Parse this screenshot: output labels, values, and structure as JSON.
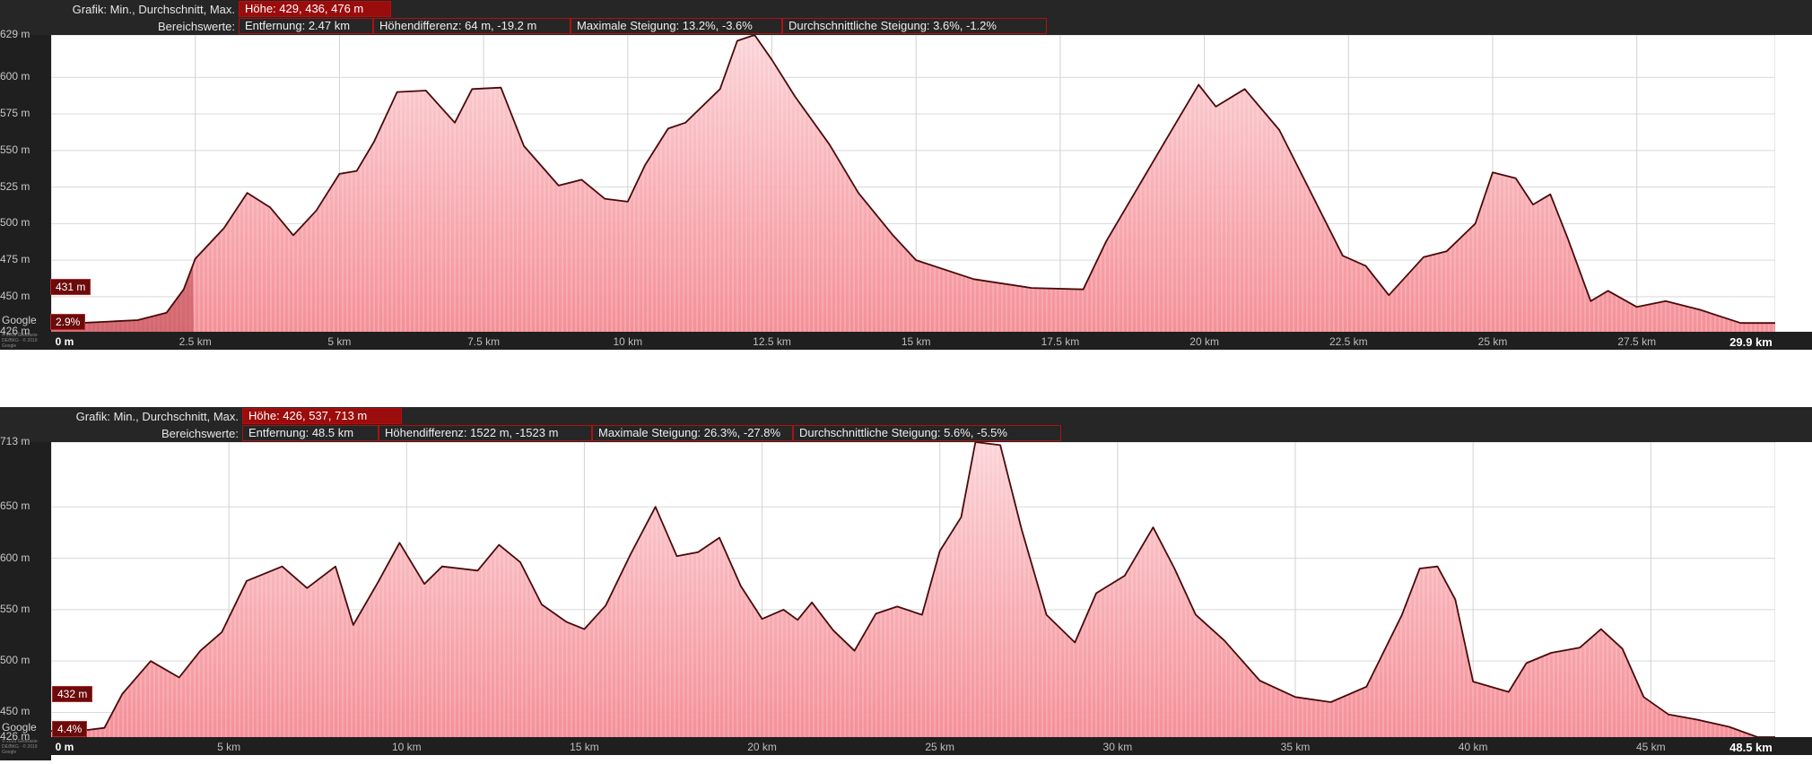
{
  "colors": {
    "fill": "#f7a0a6",
    "line": "#4a0a0a",
    "accent": "#9b0c0c",
    "frame": "#262626"
  },
  "charts": [
    {
      "header": {
        "grafik_label": "Grafik: Min., Durchschnitt, Max.",
        "hoehe": "Höhe: 429, 436, 476 m",
        "bereich_label": "Bereichswerte:",
        "entfernung": "Entfernung: 2.47 km",
        "hoehendifferenz": "Höhendifferenz: 64 m, -19.2 m",
        "max_steigung": "Maximale Steigung: 13.2%, -3.6%",
        "avg_steigung": "Durchschnittliche Steigung: 3.6%, -1.2%"
      },
      "y_tick_labels": [
        "629 m",
        "600 m",
        "575 m",
        "550 m",
        "525 m",
        "500 m",
        "475 m",
        "450 m",
        "426 m"
      ],
      "x_tick_labels": [
        "0 m",
        "2.5 km",
        "5 km",
        "7.5 km",
        "10 km",
        "12.5 km",
        "15 km",
        "17.5 km",
        "20 km",
        "22.5 km",
        "25 km",
        "27.5 km",
        "29.9 km"
      ],
      "start_elevation": "431 m",
      "start_grade": "2.9%",
      "google_label": "Google",
      "copyright": "© 2019 GeoBasis-DE/BKG · © 2019 Google"
    },
    {
      "header": {
        "grafik_label": "Grafik: Min., Durchschnitt, Max.",
        "hoehe": "Höhe: 426, 537, 713 m",
        "bereich_label": "Bereichswerte:",
        "entfernung": "Entfernung: 48.5 km",
        "hoehendifferenz": "Höhendifferenz: 1522 m, -1523 m",
        "max_steigung": "Maximale Steigung: 26.3%, -27.8%",
        "avg_steigung": "Durchschnittliche Steigung: 5.6%, -5.5%"
      },
      "y_tick_labels": [
        "713 m",
        "650 m",
        "600 m",
        "550 m",
        "500 m",
        "450 m",
        "426 m"
      ],
      "x_tick_labels": [
        "0 m",
        "5 km",
        "10 km",
        "15 km",
        "20 km",
        "25 km",
        "30 km",
        "35 km",
        "40 km",
        "45 km",
        "48.5 km"
      ],
      "start_elevation": "432 m",
      "start_grade": "4.4%",
      "google_label": "Google",
      "copyright": "© 2019 GeoBasis-DE/BKG · © 2019 Google"
    }
  ],
  "chart_data": [
    {
      "type": "area",
      "xlabel": "",
      "ylabel": "",
      "x_unit": "km",
      "y_unit": "m",
      "xlim": [
        0,
        29.9
      ],
      "ylim": [
        426,
        629
      ],
      "y_ticks": [
        629,
        600,
        575,
        550,
        525,
        500,
        475,
        450,
        426
      ],
      "x_ticks": [
        0,
        2.5,
        5,
        7.5,
        10,
        12.5,
        15,
        17.5,
        20,
        22.5,
        25,
        27.5,
        29.9
      ],
      "grid": true,
      "highlight_range": [
        0,
        2.47
      ],
      "series": [
        {
          "x": [
            0,
            0.5,
            1,
            1.5,
            2,
            2.3,
            2.5,
            3,
            3.4,
            3.8,
            4.2,
            4.6,
            5,
            5.3,
            5.6,
            6,
            6.5,
            7,
            7.3,
            7.8,
            8.2,
            8.8,
            9.2,
            9.6,
            10,
            10.3,
            10.7,
            11,
            11.6,
            11.9,
            12.2,
            12.5,
            12.9,
            13.5,
            14,
            14.6,
            15,
            16,
            17,
            17.9,
            18.3,
            19.3,
            19.9,
            20.2,
            20.7,
            21.3,
            21.8,
            22.4,
            22.8,
            23.2,
            23.8,
            24.2,
            24.7,
            25,
            25.4,
            25.7,
            26,
            26.3,
            26.7,
            27,
            27.5,
            28,
            28.6,
            29.3,
            29.9
          ],
          "y": [
            431,
            432,
            433,
            434,
            439,
            455,
            476,
            497,
            521,
            511,
            492,
            509,
            534,
            536,
            556,
            590,
            591,
            569,
            592,
            593,
            553,
            526,
            530,
            517,
            515,
            540,
            565,
            569,
            592,
            625,
            629,
            612,
            587,
            554,
            521,
            492,
            475,
            462,
            456,
            455,
            488,
            555,
            595,
            580,
            592,
            564,
            525,
            478,
            471,
            451,
            477,
            481,
            500,
            535,
            531,
            513,
            520,
            490,
            447,
            454,
            443,
            447,
            441,
            432,
            432
          ]
        }
      ]
    },
    {
      "type": "area",
      "xlabel": "",
      "ylabel": "",
      "x_unit": "km",
      "y_unit": "m",
      "xlim": [
        0,
        48.5
      ],
      "ylim": [
        426,
        713
      ],
      "y_ticks": [
        713,
        650,
        600,
        550,
        500,
        450,
        426
      ],
      "x_ticks": [
        0,
        5,
        10,
        15,
        20,
        25,
        30,
        35,
        40,
        45,
        48.5
      ],
      "grid": true,
      "highlight_range": [
        0,
        48.5
      ],
      "series": [
        {
          "x": [
            0,
            0.8,
            1.5,
            2,
            2.8,
            3.6,
            4.2,
            4.8,
            5.5,
            6.5,
            7.2,
            8,
            8.5,
            9.2,
            9.8,
            10.5,
            11,
            12,
            12.6,
            13.2,
            13.8,
            14.5,
            15,
            15.6,
            16.3,
            17,
            17.6,
            18.2,
            18.8,
            19.4,
            20,
            20.6,
            21,
            21.4,
            22,
            22.6,
            23.2,
            23.8,
            24.5,
            25,
            25.6,
            26,
            26.7,
            27.3,
            28,
            28.8,
            29.4,
            30.2,
            31,
            31.6,
            32.2,
            33,
            34,
            35,
            36,
            37,
            38,
            38.5,
            39,
            39.5,
            40,
            41,
            41.5,
            42.2,
            43,
            43.6,
            44.2,
            44.8,
            45.5,
            46.3,
            47.2,
            48,
            48.5
          ],
          "y": [
            432,
            432,
            435,
            468,
            500,
            484,
            510,
            528,
            578,
            592,
            571,
            592,
            535,
            577,
            615,
            575,
            592,
            588,
            613,
            596,
            555,
            538,
            531,
            554,
            604,
            650,
            602,
            606,
            620,
            573,
            541,
            550,
            540,
            557,
            530,
            510,
            546,
            553,
            545,
            607,
            640,
            713,
            710,
            628,
            545,
            518,
            566,
            583,
            630,
            590,
            545,
            520,
            481,
            465,
            460,
            475,
            545,
            590,
            592,
            560,
            480,
            470,
            498,
            508,
            513,
            531,
            512,
            465,
            448,
            443,
            436,
            426,
            426
          ]
        }
      ]
    }
  ]
}
